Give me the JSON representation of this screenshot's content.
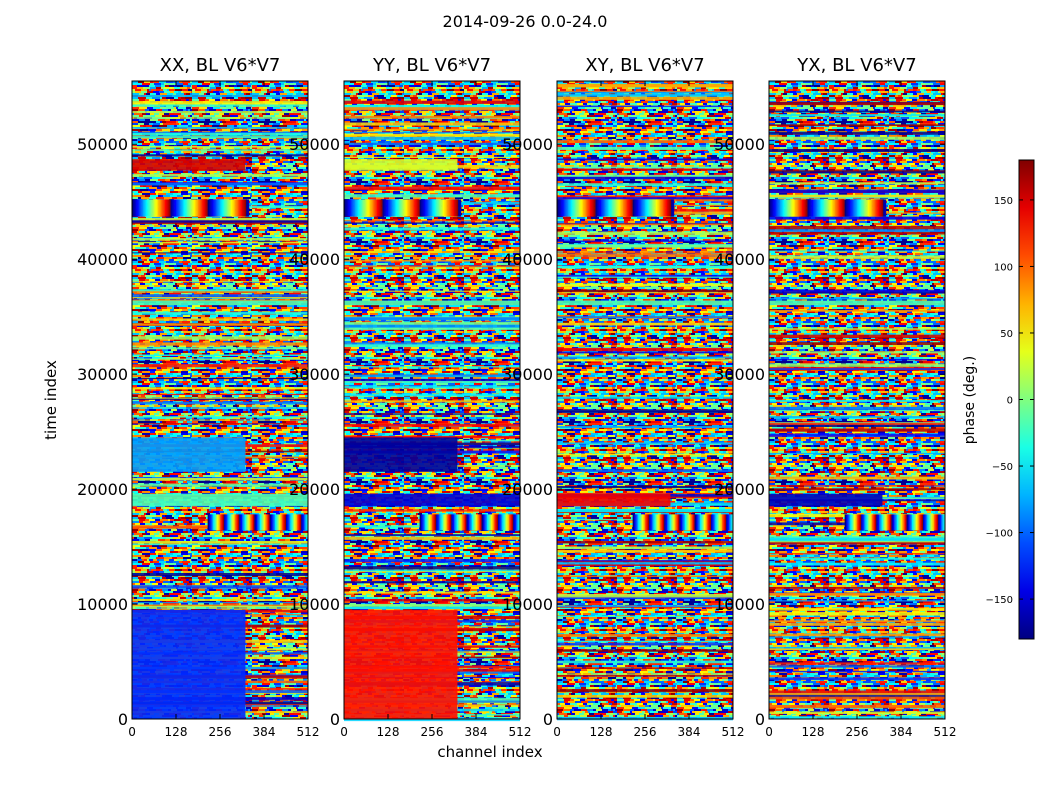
{
  "chart_data": {
    "type": "heatmap",
    "title": "2014-09-26 0.0-24.0",
    "xlabel": "channel index",
    "ylabel": "time index",
    "colorbar_label": "phase (deg.)",
    "colormap": "jet",
    "xlim": [
      0,
      512
    ],
    "ylim": [
      0,
      55500
    ],
    "x_ticks": [
      0,
      128,
      256,
      384,
      512
    ],
    "y_ticks": [
      0,
      10000,
      20000,
      30000,
      40000,
      50000
    ],
    "colorbar_range": [
      -180,
      180
    ],
    "colorbar_ticks": [
      -150,
      -100,
      -50,
      0,
      50,
      100,
      150
    ],
    "colorbar_tick_labels": [
      "−150",
      "−100",
      "−50",
      "0",
      "50",
      "100",
      "150"
    ],
    "panels": [
      {
        "title": "XX, BL V6*V7",
        "regions": [
          {
            "t": [
              0,
              9500
            ],
            "ch": [
              0,
              330
            ],
            "phase": -120
          },
          {
            "t": [
              21500,
              24500
            ],
            "ch": [
              0,
              330
            ],
            "phase": -80
          },
          {
            "t": [
              18500,
              19600
            ],
            "ch": [
              0,
              512
            ],
            "phase": -20
          },
          {
            "t": [
              47700,
              48700
            ],
            "ch": [
              0,
              330
            ],
            "phase": 150
          },
          {
            "t": [
              36000,
              36400
            ],
            "ch": [
              0,
              512
            ],
            "phase": -20
          }
        ],
        "fringes": [
          {
            "t": [
              43700,
              45200
            ],
            "ch": [
              0,
              340
            ],
            "period": 110
          },
          {
            "t": [
              16400,
              17800
            ],
            "ch": [
              220,
              512
            ],
            "period": 45
          }
        ]
      },
      {
        "title": "YY, BL V6*V7",
        "regions": [
          {
            "t": [
              0,
              9500
            ],
            "ch": [
              0,
              330
            ],
            "phase": 130
          },
          {
            "t": [
              21500,
              24500
            ],
            "ch": [
              0,
              330
            ],
            "phase": -170
          },
          {
            "t": [
              18500,
              19600
            ],
            "ch": [
              0,
              512
            ],
            "phase": -150
          },
          {
            "t": [
              47700,
              48700
            ],
            "ch": [
              0,
              330
            ],
            "phase": 30
          },
          {
            "t": [
              36000,
              36400
            ],
            "ch": [
              0,
              512
            ],
            "phase": -20
          }
        ],
        "fringes": [
          {
            "t": [
              43700,
              45200
            ],
            "ch": [
              0,
              340
            ],
            "period": 110
          },
          {
            "t": [
              16400,
              17800
            ],
            "ch": [
              220,
              512
            ],
            "period": 45
          }
        ]
      },
      {
        "title": "XY, BL V6*V7",
        "regions": [
          {
            "t": [
              18500,
              19600
            ],
            "ch": [
              0,
              330
            ],
            "phase": 140
          },
          {
            "t": [
              36000,
              36400
            ],
            "ch": [
              0,
              512
            ],
            "phase": -20
          }
        ],
        "fringes": [
          {
            "t": [
              43700,
              45200
            ],
            "ch": [
              0,
              340
            ],
            "period": 110
          },
          {
            "t": [
              16400,
              17800
            ],
            "ch": [
              220,
              512
            ],
            "period": 45
          }
        ]
      },
      {
        "title": "YX, BL V6*V7",
        "regions": [
          {
            "t": [
              18500,
              19600
            ],
            "ch": [
              0,
              330
            ],
            "phase": -160
          },
          {
            "t": [
              36000,
              36400
            ],
            "ch": [
              0,
              512
            ],
            "phase": -20
          }
        ],
        "fringes": [
          {
            "t": [
              43700,
              45200
            ],
            "ch": [
              0,
              340
            ],
            "period": 110
          },
          {
            "t": [
              16400,
              17800
            ],
            "ch": [
              220,
              512
            ],
            "period": 45
          }
        ]
      }
    ]
  }
}
